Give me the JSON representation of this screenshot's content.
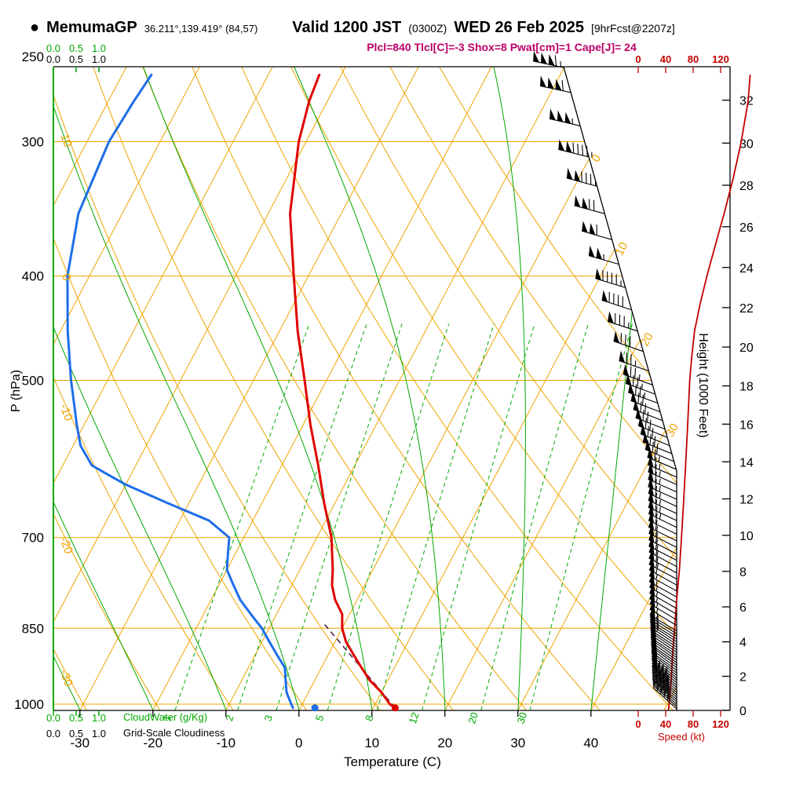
{
  "header": {
    "station_dot": "●",
    "station": "MemumaGP",
    "coords": "36.211°,139.419° (84,57)",
    "valid_bold1": "Valid 1200 JST",
    "valid_small1": "(0300Z)",
    "valid_bold2": "WED 26 Feb 2025",
    "valid_small2": "[9hrFcst@2207z]",
    "params_line": "Plcl=840 Tlcl[C]=-3 Shox=8 Pwat[cm]=1 Cape[J]= 24"
  },
  "axes": {
    "pressure_label": "P (hPa)",
    "temperature_label": "Temperature (C)",
    "height_label": "Height (1000 Feet)",
    "speed_label": "Speed (kt)",
    "cloudwater_label": "CloudWater (g/Kg)",
    "cloudiness_label": "Grid-Scale Cloudiness",
    "pressure_ticks": [
      250,
      300,
      400,
      500,
      700,
      850,
      1000
    ],
    "temp_ticks": [
      -30,
      -20,
      -10,
      0,
      10,
      20,
      30,
      40
    ],
    "height_ticks": [
      0,
      2,
      4,
      6,
      8,
      10,
      12,
      14,
      16,
      18,
      20,
      22,
      24,
      26,
      28,
      30,
      32
    ],
    "speed_ticks": [
      0,
      40,
      80,
      120
    ],
    "cloud_scale_ticks": [
      "0.0",
      "0.5",
      "1.0"
    ]
  },
  "colors": {
    "grid_orange": "#efa400",
    "green": "#00a800",
    "temp_red": "#e00000",
    "dewpoint_blue": "#1d6ee8",
    "speed_red": "#c40000",
    "params_magenta": "#bb0066",
    "parcel": "#50204f"
  },
  "chart_data": {
    "type": "skewt-log-p sounding",
    "title": "MemumaGP Valid 1200 JST (0300Z) WED 26 Feb 2025 9hrFcst",
    "pressure_range_hpa": [
      250,
      1013
    ],
    "temp_axis_range_c": [
      -30,
      40
    ],
    "skew_grid": {
      "isotherms": {
        "min": -120,
        "max": 50,
        "step": 10
      },
      "dry_adiabats": {
        "min": -40,
        "max": 90,
        "step": 10
      },
      "moist_adiabats": {
        "min": -60,
        "max": 40,
        "step": 10
      },
      "mixing_ratio_g_kg": [
        1,
        2,
        3,
        5,
        8,
        12,
        20,
        30
      ],
      "isotherm_labels": [
        0,
        10,
        20,
        30
      ],
      "dry_adiabat_labels": [
        10,
        0,
        -10,
        -20,
        -30
      ]
    },
    "indices": {
      "plcl_hpa": 840,
      "tlcl_c": -3,
      "showalter": 8,
      "pwat_cm": 1,
      "cape_j": 24
    },
    "surface": {
      "pressure_hpa": 1008,
      "temp_c": 13,
      "dewpoint_c": 2
    },
    "lcl": {
      "pressure_hpa": 840,
      "temp_c": -3
    },
    "temperature_profile": {
      "pressure_hpa": [
        1008,
        1000,
        975,
        950,
        925,
        900,
        875,
        850,
        825,
        800,
        775,
        750,
        700,
        650,
        600,
        550,
        500,
        450,
        400,
        350,
        300,
        275,
        260
      ],
      "temp_c": [
        13,
        12,
        10,
        7.5,
        5.5,
        3.5,
        1.5,
        0,
        -1,
        -3,
        -4.5,
        -5.5,
        -8,
        -11.5,
        -15,
        -19,
        -23,
        -27.5,
        -32,
        -37,
        -41,
        -42.5,
        -43
      ]
    },
    "dewpoint_profile": {
      "pressure_hpa": [
        1008,
        1000,
        975,
        950,
        925,
        900,
        875,
        850,
        825,
        800,
        775,
        750,
        725,
        700,
        675,
        650,
        625,
        600,
        575,
        550,
        500,
        450,
        400,
        350,
        300,
        275,
        260
      ],
      "temp_c": [
        -1,
        -1.5,
        -3,
        -4,
        -5,
        -7,
        -9,
        -11,
        -13.5,
        -16,
        -18,
        -20,
        -21,
        -22,
        -26,
        -33,
        -40,
        -46,
        -49,
        -51,
        -55,
        -59,
        -63,
        -66,
        -67,
        -66.5,
        -66
      ]
    },
    "speed_profile": {
      "pressure_hpa": [
        1013,
        1000,
        950,
        900,
        850,
        800,
        750,
        700,
        650,
        600,
        550,
        500,
        475,
        450,
        425,
        400,
        375,
        350,
        325,
        300,
        275,
        260
      ],
      "speed_kt": [
        44,
        45,
        48,
        50,
        53,
        56,
        60,
        63,
        66,
        69,
        72,
        75,
        78,
        82,
        90,
        100,
        112,
        125,
        138,
        150,
        160,
        163
      ]
    },
    "wind_barbs": {
      "pressure_hpa": [
        1010,
        1005,
        1000,
        995,
        990,
        985,
        980,
        975,
        970,
        965,
        960,
        955,
        950,
        945,
        940,
        935,
        930,
        925,
        920,
        915,
        910,
        905,
        900,
        895,
        890,
        885,
        880,
        875,
        870,
        865,
        860,
        855,
        845,
        835,
        825,
        815,
        805,
        795,
        785,
        775,
        765,
        755,
        745,
        735,
        725,
        715,
        705,
        695,
        685,
        675,
        665,
        655,
        645,
        635,
        625,
        615,
        605,
        595,
        585,
        575,
        565,
        555,
        545,
        535,
        525,
        515,
        505,
        490,
        470,
        450,
        430,
        410,
        390,
        370,
        350,
        330,
        310,
        290,
        270,
        256
      ],
      "speed_kt": [
        44,
        44,
        45,
        45,
        45,
        46,
        46,
        47,
        47,
        47,
        48,
        48,
        48,
        49,
        49,
        49,
        50,
        50,
        50,
        51,
        51,
        51,
        52,
        52,
        52,
        52,
        53,
        53,
        53,
        53,
        54,
        54,
        54,
        55,
        55,
        56,
        56,
        57,
        57,
        58,
        58,
        59,
        60,
        60,
        61,
        61,
        62,
        62,
        63,
        63,
        64,
        64,
        65,
        66,
        66,
        67,
        67,
        68,
        69,
        69,
        70,
        71,
        71,
        72,
        73,
        74,
        74,
        77,
        80,
        84,
        90,
        96,
        103,
        112,
        122,
        133,
        145,
        155,
        161,
        164
      ],
      "dir_deg": [
        312,
        312,
        311,
        311,
        310,
        310,
        310,
        309,
        309,
        309,
        308,
        308,
        308,
        307,
        307,
        307,
        306,
        306,
        306,
        305,
        305,
        305,
        304,
        304,
        304,
        303,
        303,
        303,
        302,
        302,
        302,
        301,
        301,
        301,
        300,
        300,
        300,
        299,
        299,
        299,
        298,
        298,
        298,
        297,
        297,
        297,
        296,
        296,
        296,
        295,
        295,
        295,
        294,
        294,
        294,
        293,
        293,
        293,
        292,
        292,
        292,
        291,
        291,
        291,
        290,
        290,
        290,
        289,
        289,
        288,
        288,
        287,
        286,
        286,
        285,
        285,
        284,
        283,
        282,
        282
      ]
    }
  }
}
